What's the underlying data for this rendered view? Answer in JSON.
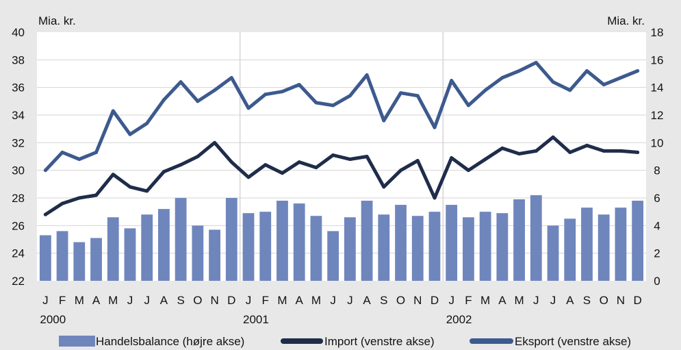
{
  "chart_data": {
    "type": "bar+line",
    "left_unit": "Mia. kr.",
    "right_unit": "Mia. kr.",
    "left_axis": {
      "min": 22,
      "max": 40,
      "ticks": [
        "40",
        "38",
        "36",
        "34",
        "32",
        "30",
        "28",
        "26",
        "24",
        "22"
      ]
    },
    "right_axis": {
      "min": 0,
      "max": 18,
      "ticks": [
        "18",
        "16",
        "14",
        "12",
        "10",
        "8",
        "6",
        "4",
        "2",
        "0"
      ]
    },
    "months": [
      "J",
      "F",
      "M",
      "A",
      "M",
      "J",
      "J",
      "A",
      "S",
      "O",
      "N",
      "D",
      "J",
      "F",
      "M",
      "A",
      "M",
      "J",
      "J",
      "A",
      "S",
      "O",
      "N",
      "D",
      "J",
      "F",
      "M",
      "A",
      "M",
      "J",
      "J",
      "A",
      "S",
      "O",
      "N",
      "D"
    ],
    "years": [
      "2000",
      "2001",
      "2002"
    ],
    "series": [
      {
        "name": "Handelsbalance (højre akse)",
        "axis": "right",
        "kind": "bar",
        "color": "#6f86bd",
        "values": [
          3.3,
          3.6,
          2.8,
          3.1,
          4.6,
          3.8,
          4.8,
          5.2,
          6.0,
          4.0,
          3.7,
          6.0,
          4.9,
          5.0,
          5.8,
          5.6,
          4.7,
          3.6,
          4.6,
          5.8,
          4.8,
          5.5,
          4.7,
          5.0,
          5.5,
          4.6,
          5.0,
          4.9,
          5.9,
          6.2,
          4.0,
          4.5,
          5.3,
          4.8,
          5.3,
          5.8
        ]
      },
      {
        "name": "Import (venstre akse)",
        "axis": "left",
        "kind": "line",
        "color": "#1f2d4a",
        "values": [
          26.8,
          27.6,
          28.0,
          28.2,
          29.7,
          28.8,
          28.5,
          29.9,
          30.4,
          31.0,
          32.0,
          30.6,
          29.5,
          30.4,
          29.8,
          30.6,
          30.2,
          31.1,
          30.8,
          31.0,
          28.8,
          30.0,
          30.7,
          28.0,
          30.9,
          30.0,
          30.8,
          31.6,
          31.2,
          31.4,
          32.4,
          31.3,
          31.8,
          31.4,
          31.4,
          31.3
        ]
      },
      {
        "name": "Eksport (venstre akse)",
        "axis": "left",
        "kind": "line",
        "color": "#3d5a8e",
        "values": [
          30.0,
          31.3,
          30.8,
          31.3,
          34.3,
          32.6,
          33.4,
          35.1,
          36.4,
          35.0,
          35.8,
          36.7,
          34.5,
          35.5,
          35.7,
          36.2,
          34.9,
          34.7,
          35.4,
          36.9,
          33.6,
          35.6,
          35.4,
          33.1,
          36.5,
          34.7,
          35.8,
          36.7,
          37.2,
          37.8,
          36.4,
          35.8,
          37.2,
          36.2,
          36.7,
          37.2
        ]
      }
    ]
  }
}
